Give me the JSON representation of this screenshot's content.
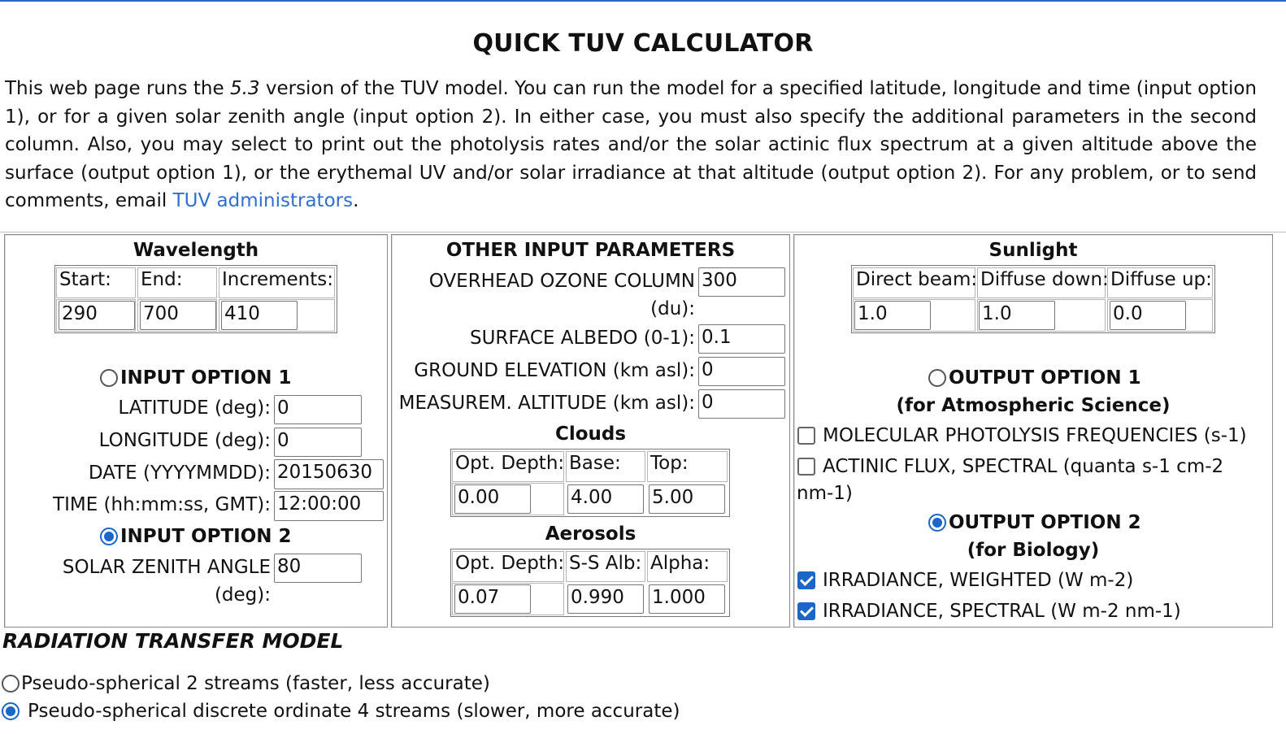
{
  "page": {
    "title": "QUICK TUV CALCULATOR",
    "intro_part1": "This web page runs the ",
    "intro_version": "5.3",
    "intro_part2": " version of the TUV model. You can run the model for a specified latitude, longitude and time (input option 1), or for a given solar zenith angle (input option 2). In either case, you must also specify the additional parameters in the second column. Also, you may select to print out the photolysis rates and/or the solar actinic flux spectrum at a given altitude above the surface (output option 1), or the erythemal UV and/or solar irradiance at that altitude (output option 2). For any problem, or to send comments, email ",
    "intro_link": "TUV administrators",
    "intro_end": "."
  },
  "wavelength": {
    "title": "Wavelength",
    "headers": [
      "Start:",
      "End:",
      "Increments:"
    ],
    "values": [
      "290",
      "700",
      "410"
    ]
  },
  "input_option1": {
    "label": "INPUT OPTION 1",
    "selected": false,
    "latitude_label": "LATITUDE (deg):",
    "latitude": "0",
    "longitude_label": "LONGITUDE (deg):",
    "longitude": "0",
    "date_label": "DATE (YYYYMMDD):",
    "date": "20150630",
    "time_label": "TIME (hh:mm:ss, GMT):",
    "time": "12:00:00"
  },
  "input_option2": {
    "label": "INPUT OPTION 2",
    "selected": true,
    "sza_label_line1": "SOLAR ZENITH ANGLE",
    "sza_label_line2": "(deg):",
    "sza": "80"
  },
  "other": {
    "title": "OTHER INPUT PARAMETERS",
    "ozone_label_line1": "OVERHEAD OZONE COLUMN",
    "ozone_label_line2": "(du):",
    "ozone": "300",
    "albedo_label": "SURFACE ALBEDO (0-1):",
    "albedo": "0.1",
    "ground_label": "GROUND ELEVATION (km asl):",
    "ground": "0",
    "measurem_label": "MEASUREM. ALTITUDE (km asl):",
    "measurem": "0"
  },
  "clouds": {
    "title": "Clouds",
    "headers": [
      "Opt. Depth:",
      "Base:",
      "Top:"
    ],
    "values": [
      "0.00",
      "4.00",
      "5.00"
    ]
  },
  "aerosols": {
    "title": "Aerosols",
    "headers": [
      "Opt. Depth:",
      "S-S Alb:",
      "Alpha:"
    ],
    "values": [
      "0.07",
      "0.990",
      "1.000"
    ]
  },
  "sunlight": {
    "title": "Sunlight",
    "headers": [
      "Direct beam:",
      "Diffuse down:",
      "Diffuse up:"
    ],
    "values": [
      "1.0",
      "1.0",
      "0.0"
    ]
  },
  "output_option1": {
    "label": "OUTPUT OPTION 1",
    "subtitle": "(for Atmospheric Science)",
    "selected": false,
    "items": [
      {
        "label": "MOLECULAR PHOTOLYSIS FREQUENCIES (s-1)",
        "checked": false
      },
      {
        "label_line1": "ACTINIC FLUX, SPECTRAL (quanta s-1 cm-2",
        "label_line2": "nm-1)",
        "checked": false
      }
    ]
  },
  "output_option2": {
    "label": "OUTPUT OPTION 2",
    "subtitle": "(for Biology)",
    "selected": true,
    "items": [
      {
        "label": "IRRADIANCE, WEIGHTED (W m-2)",
        "checked": true
      },
      {
        "label": "IRRADIANCE, SPECTRAL (W m-2 nm-1)",
        "checked": true
      }
    ]
  },
  "rtm": {
    "title": "RADIATION TRANSFER MODEL",
    "options": [
      {
        "label": "Pseudo-spherical 2 streams (faster, less accurate)",
        "selected": false
      },
      {
        "label": "Pseudo-spherical discrete ordinate 4 streams (slower, more accurate)",
        "selected": true
      }
    ]
  },
  "colors": {
    "accent": "#1a66c9",
    "link": "#2f6fcf"
  }
}
